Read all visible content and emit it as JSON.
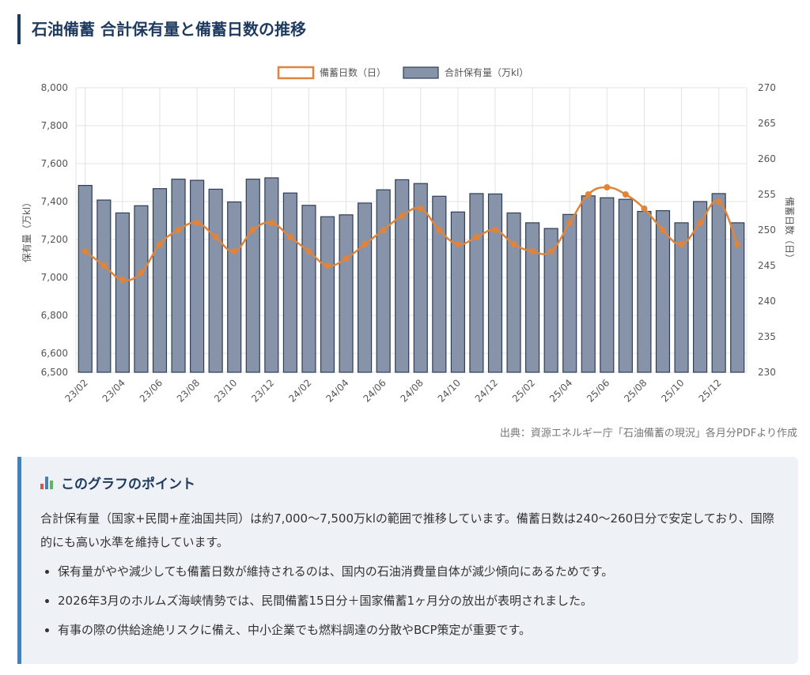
{
  "title": "石油備蓄 合計保有量と備蓄日数の推移",
  "source": "出典：資源エネルギー庁「石油備蓄の現況」各月分PDFより作成",
  "colors": {
    "bar_fill": "#8793a8",
    "bar_stroke": "#2f3e57",
    "line": "#e0843c",
    "accent": "#1e3a5f",
    "box_border": "#4a7fb5"
  },
  "point_box": {
    "icon": "bar-chart-icon",
    "heading": "このグラフのポイント",
    "body": "合計保有量（国家+民間+産油国共同）は約7,000〜7,500万klの範囲で推移しています。備蓄日数は240〜260日分で安定しており、国際的にも高い水準を維持しています。",
    "bullets": [
      "保有量がやや減少しても備蓄日数が維持されるのは、国内の石油消費量自体が減少傾向にあるためです。",
      "2026年3月のホルムズ海峡情勢では、民間備蓄15日分＋国家備蓄1ヶ月分の放出が表明されました。",
      "有事の際の供給途絶リスクに備え、中小企業でも燃料調達の分散やBCP策定が重要です。"
    ]
  },
  "chart_data": {
    "type": "bar",
    "title": "",
    "legend_position": "top-center",
    "grid": true,
    "x": [
      "23/02",
      "23/03",
      "23/04",
      "23/05",
      "23/06",
      "23/07",
      "23/08",
      "23/09",
      "23/10",
      "23/11",
      "23/12",
      "24/01",
      "24/02",
      "24/03",
      "24/04",
      "24/05",
      "24/06",
      "24/07",
      "24/08",
      "24/09",
      "24/10",
      "24/11",
      "24/12",
      "25/01",
      "25/02",
      "25/03",
      "25/04",
      "25/05",
      "25/06",
      "25/07",
      "25/08",
      "25/09",
      "25/10",
      "25/11",
      "25/12",
      "26/01"
    ],
    "x_tick_labels": [
      "23/02",
      "23/04",
      "23/06",
      "23/08",
      "23/10",
      "23/12",
      "24/02",
      "24/04",
      "24/06",
      "24/08",
      "24/10",
      "24/12",
      "25/02",
      "25/04",
      "25/06",
      "25/08",
      "25/10",
      "25/12"
    ],
    "y_left": {
      "label": "保有量（万kl）",
      "range": [
        6500,
        8000
      ],
      "ticks": [
        "6,500",
        "6,600",
        "6,800",
        "7,000",
        "7,200",
        "7,400",
        "7,600",
        "7,800",
        "8,000"
      ],
      "tick_values": [
        6500,
        6600,
        6800,
        7000,
        7200,
        7400,
        7600,
        7800,
        8000
      ]
    },
    "y_right": {
      "label": "備蓄日数（日）",
      "range": [
        230,
        270
      ],
      "ticks": [
        "230",
        "235",
        "240",
        "245",
        "250",
        "255",
        "260",
        "265",
        "270"
      ],
      "tick_values": [
        230,
        235,
        240,
        245,
        250,
        255,
        260,
        265,
        270
      ]
    },
    "series": [
      {
        "name": "合計保有量（万kl）",
        "type": "bar",
        "axis": "left",
        "values": [
          7485,
          7408,
          7340,
          7378,
          7468,
          7518,
          7512,
          7465,
          7398,
          7518,
          7525,
          7445,
          7380,
          7320,
          7330,
          7392,
          7462,
          7515,
          7495,
          7428,
          7345,
          7442,
          7440,
          7340,
          7288,
          7258,
          7332,
          7430,
          7420,
          7412,
          7348,
          7352,
          7288,
          7400,
          7442,
          7288
        ]
      },
      {
        "name": "備蓄日数（日）",
        "type": "line",
        "axis": "right",
        "values": [
          247,
          245,
          243,
          244,
          248,
          250,
          251,
          249,
          247,
          250,
          251,
          249,
          247,
          245,
          246,
          248,
          250,
          252,
          253,
          250,
          248,
          249,
          250,
          248,
          247,
          247,
          251,
          255,
          256,
          255,
          253,
          250,
          248,
          251,
          254,
          248
        ]
      }
    ]
  }
}
